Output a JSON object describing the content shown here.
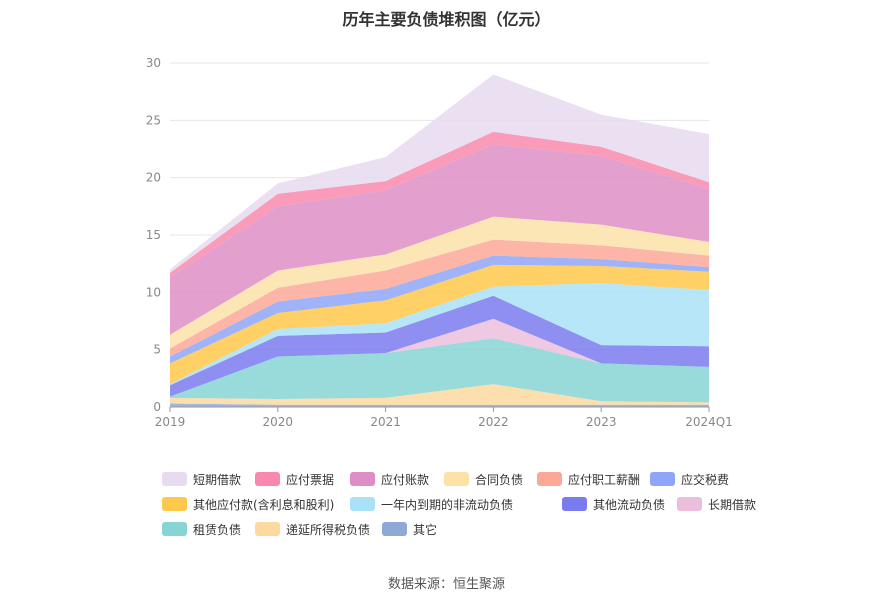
{
  "chart_data": {
    "type": "area",
    "stacked": true,
    "title": "历年主要负债堆积图（亿元）",
    "xlabel": "",
    "ylabel": "",
    "categories": [
      "2019",
      "2020",
      "2021",
      "2022",
      "2023",
      "2024Q1"
    ],
    "ylim": [
      0,
      30
    ],
    "yticks": [
      0,
      5,
      10,
      15,
      20,
      25,
      30
    ],
    "grid": true,
    "legend_position": "bottom",
    "series": [
      {
        "name": "其它",
        "color": "#8fa9d6",
        "values": [
          0.3,
          0.2,
          0.2,
          0.2,
          0.2,
          0.2
        ]
      },
      {
        "name": "递延所得税负债",
        "color": "#fdd9a0",
        "values": [
          0.5,
          0.5,
          0.6,
          1.8,
          0.3,
          0.2
        ]
      },
      {
        "name": "租赁负债",
        "color": "#86d5d4",
        "values": [
          0.1,
          3.7,
          3.9,
          4.0,
          3.3,
          3.1
        ]
      },
      {
        "name": "长期借款",
        "color": "#ebbfdc",
        "values": [
          0.0,
          0.0,
          0.0,
          1.7,
          0.0,
          0.0
        ]
      },
      {
        "name": "其他流动负债",
        "color": "#7b7bf0",
        "values": [
          1.0,
          1.8,
          1.8,
          2.0,
          1.6,
          1.8
        ]
      },
      {
        "name": "一年内到期的非流动负债",
        "color": "#a9e2f7",
        "values": [
          0.1,
          0.6,
          0.8,
          0.8,
          5.4,
          4.9
        ]
      },
      {
        "name": "其他应付款(含利息和股利)",
        "color": "#fec84a",
        "values": [
          1.8,
          1.4,
          2.0,
          1.9,
          1.5,
          1.6
        ]
      },
      {
        "name": "应交税费",
        "color": "#8fa6f8",
        "values": [
          0.6,
          1.0,
          1.0,
          0.8,
          0.6,
          0.4
        ]
      },
      {
        "name": "应付职工薪酬",
        "color": "#fba897",
        "values": [
          0.7,
          1.2,
          1.6,
          1.4,
          1.2,
          1.0
        ]
      },
      {
        "name": "合同负债",
        "color": "#fde2a8",
        "values": [
          1.2,
          1.5,
          1.4,
          2.0,
          1.8,
          1.2
        ]
      },
      {
        "name": "应付账款",
        "color": "#de8ec4",
        "values": [
          5.0,
          5.6,
          5.6,
          6.3,
          6.0,
          4.6
        ]
      },
      {
        "name": "应付票据",
        "color": "#f889ad",
        "values": [
          0.4,
          1.1,
          0.8,
          1.1,
          0.8,
          0.6
        ]
      },
      {
        "name": "短期借款",
        "color": "#e8daef",
        "values": [
          0.3,
          0.9,
          2.1,
          5.0,
          2.8,
          4.2
        ]
      }
    ]
  },
  "legend_order": [
    "短期借款",
    "应付票据",
    "应付账款",
    "合同负债",
    "应付职工薪酬",
    "应交税费",
    "其他应付款(含利息和股利)",
    "一年内到期的非流动负债",
    "其他流动负债",
    "长期借款",
    "租赁负债",
    "递延所得税负债",
    "其它"
  ],
  "source": "数据来源：恒生聚源"
}
